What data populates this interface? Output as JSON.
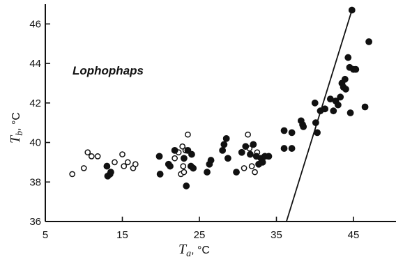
{
  "chart_data": {
    "type": "scatter",
    "title": "",
    "annotation": "Lophophaps",
    "xlabel": {
      "symbol": "T",
      "subscript": "a",
      "unit": ", °C"
    },
    "ylabel": {
      "symbol": "T",
      "subscript": "b",
      "unit": ", °C"
    },
    "xlim": [
      5,
      50
    ],
    "ylim": [
      36,
      47
    ],
    "xticks": [
      "5",
      "15",
      "25",
      "35",
      "45"
    ],
    "yticks": [
      "36",
      "38",
      "40",
      "42",
      "44",
      "46"
    ],
    "grid": false,
    "legend": "none",
    "series": [
      {
        "marker": "open-circle",
        "points": [
          [
            8.5,
            38.4
          ],
          [
            10.0,
            38.7
          ],
          [
            10.5,
            39.5
          ],
          [
            11.0,
            39.3
          ],
          [
            11.8,
            39.3
          ],
          [
            14.0,
            39.0
          ],
          [
            15.0,
            39.4
          ],
          [
            15.2,
            38.8
          ],
          [
            15.7,
            39.0
          ],
          [
            16.4,
            38.7
          ],
          [
            16.7,
            38.9
          ],
          [
            21.8,
            39.2
          ],
          [
            22.3,
            39.5
          ],
          [
            22.6,
            38.4
          ],
          [
            22.8,
            39.8
          ],
          [
            22.9,
            38.8
          ],
          [
            23.0,
            38.5
          ],
          [
            23.2,
            39.6
          ],
          [
            23.5,
            40.4
          ],
          [
            30.8,
            38.7
          ],
          [
            31.3,
            40.4
          ],
          [
            31.5,
            39.7
          ],
          [
            31.8,
            38.8
          ],
          [
            32.2,
            38.5
          ],
          [
            32.5,
            39.5
          ]
        ]
      },
      {
        "marker": "filled-circle",
        "points": [
          [
            13.0,
            38.8
          ],
          [
            13.1,
            38.3
          ],
          [
            13.4,
            38.4
          ],
          [
            13.5,
            38.5
          ],
          [
            19.8,
            39.3
          ],
          [
            19.9,
            38.4
          ],
          [
            21.0,
            38.9
          ],
          [
            21.2,
            38.8
          ],
          [
            21.8,
            39.6
          ],
          [
            23.0,
            39.2
          ],
          [
            23.3,
            37.8
          ],
          [
            23.5,
            39.6
          ],
          [
            23.9,
            38.8
          ],
          [
            24.0,
            39.4
          ],
          [
            24.2,
            38.7
          ],
          [
            26.0,
            38.5
          ],
          [
            26.3,
            38.9
          ],
          [
            26.5,
            39.1
          ],
          [
            28.0,
            39.6
          ],
          [
            28.2,
            39.9
          ],
          [
            28.5,
            40.2
          ],
          [
            28.7,
            39.2
          ],
          [
            29.8,
            38.5
          ],
          [
            30.5,
            39.5
          ],
          [
            31.0,
            39.8
          ],
          [
            31.6,
            39.4
          ],
          [
            32.0,
            39.9
          ],
          [
            32.4,
            39.3
          ],
          [
            32.7,
            38.9
          ],
          [
            33.0,
            39.2
          ],
          [
            33.2,
            39.0
          ],
          [
            33.5,
            39.3
          ],
          [
            34.0,
            39.3
          ],
          [
            36.0,
            40.6
          ],
          [
            36.0,
            39.7
          ],
          [
            37.0,
            40.5
          ],
          [
            37.0,
            39.7
          ],
          [
            38.2,
            41.1
          ],
          [
            38.4,
            40.9
          ],
          [
            38.5,
            40.8
          ],
          [
            40.0,
            42.0
          ],
          [
            40.1,
            41.0
          ],
          [
            40.3,
            40.5
          ],
          [
            40.7,
            41.6
          ],
          [
            41.3,
            41.7
          ],
          [
            42.0,
            42.2
          ],
          [
            42.4,
            41.6
          ],
          [
            42.7,
            42.1
          ],
          [
            43.0,
            41.9
          ],
          [
            43.3,
            42.3
          ],
          [
            43.5,
            43.0
          ],
          [
            43.7,
            42.8
          ],
          [
            43.9,
            43.2
          ],
          [
            44.0,
            42.7
          ],
          [
            44.3,
            44.3
          ],
          [
            44.5,
            43.8
          ],
          [
            44.6,
            41.5
          ],
          [
            44.8,
            46.7
          ],
          [
            45.0,
            43.7
          ],
          [
            45.3,
            43.7
          ],
          [
            46.5,
            41.8
          ],
          [
            47.0,
            45.1
          ]
        ]
      }
    ],
    "line": {
      "x": [
        36.3,
        44.8
      ],
      "y": [
        36,
        46.7
      ]
    }
  }
}
